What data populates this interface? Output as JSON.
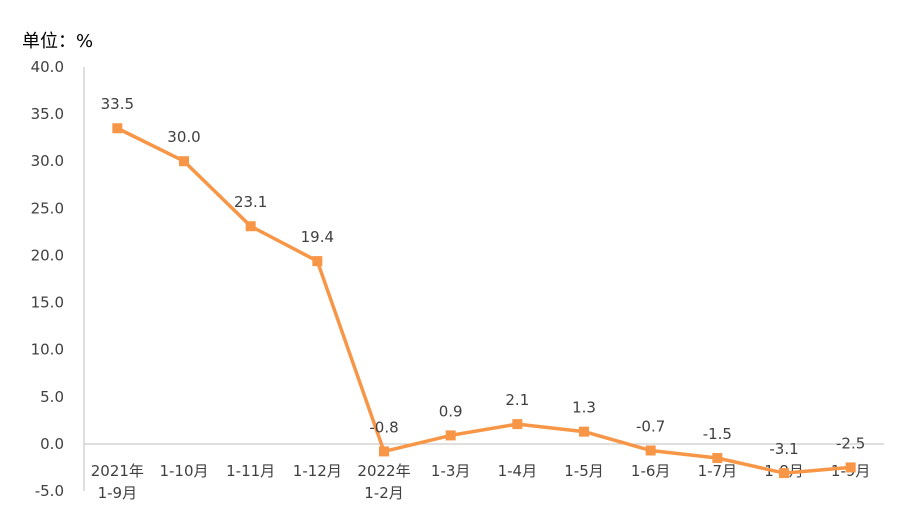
{
  "chart_data": {
    "type": "line",
    "unit_label": "单位：%",
    "categories": [
      [
        "2021年",
        "1-9月"
      ],
      [
        "1-10月"
      ],
      [
        "1-11月"
      ],
      [
        "1-12月"
      ],
      [
        "2022年",
        "1-2月"
      ],
      [
        "1-3月"
      ],
      [
        "1-4月"
      ],
      [
        "1-5月"
      ],
      [
        "1-6月"
      ],
      [
        "1-7月"
      ],
      [
        "1-8月"
      ],
      [
        "1-9月"
      ]
    ],
    "values": [
      33.5,
      30.0,
      23.1,
      19.4,
      -0.8,
      0.9,
      2.1,
      1.3,
      -0.7,
      -1.5,
      -3.1,
      -2.5
    ],
    "value_labels": [
      "33.5",
      "30.0",
      "23.1",
      "19.4",
      "-0.8",
      "0.9",
      "2.1",
      "1.3",
      "-0.7",
      "-1.5",
      "-3.1",
      "-2.5"
    ],
    "y_ticks": [
      "40.0",
      "35.0",
      "30.0",
      "25.0",
      "20.0",
      "15.0",
      "10.0",
      "5.0",
      "0.0",
      "-5.0"
    ],
    "ylim": [
      -5,
      40
    ],
    "grid": false,
    "line_color": "#F79646",
    "marker": "square"
  }
}
